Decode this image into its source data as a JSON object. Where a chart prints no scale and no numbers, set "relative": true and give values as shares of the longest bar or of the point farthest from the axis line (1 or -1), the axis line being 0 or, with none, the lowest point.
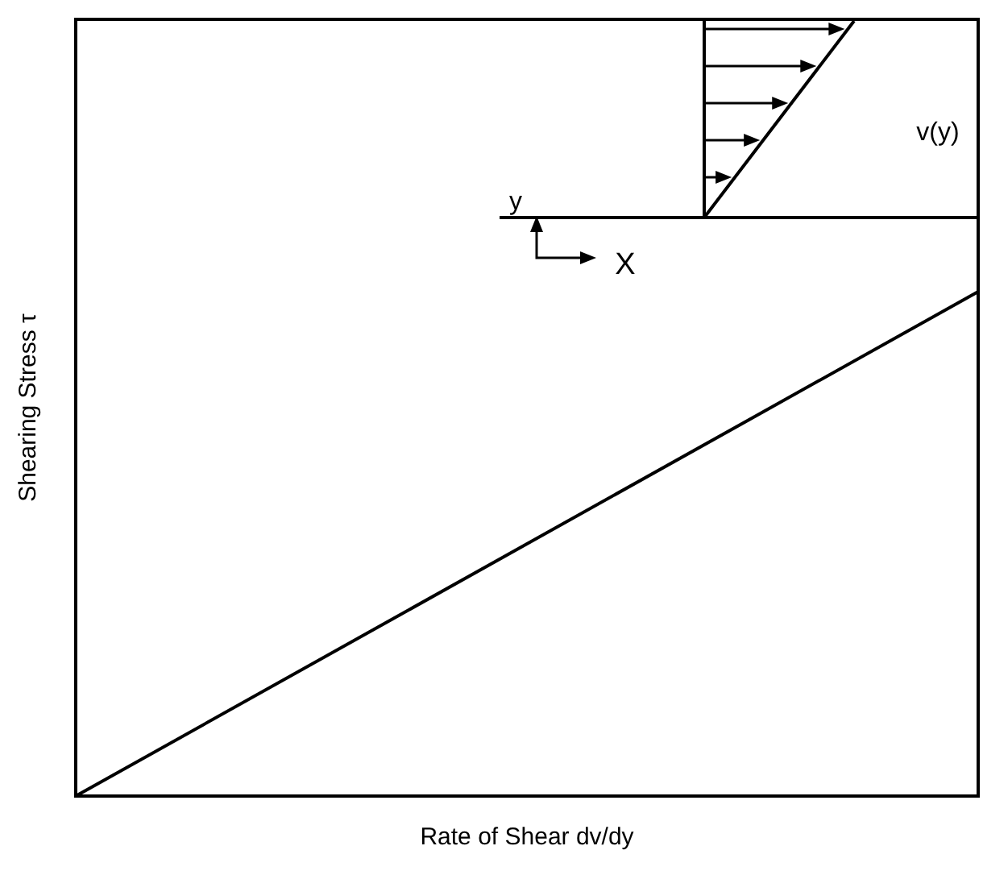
{
  "chart_data": {
    "type": "line",
    "relative": true,
    "xlabel": "Rate of Shear dv/dy",
    "ylabel": "Shearing Stress τ",
    "categories": [
      null,
      null,
      null
    ],
    "series": [
      {
        "color": "#000000",
        "values": [
          0,
          0.5,
          1
        ]
      }
    ],
    "marker": "none",
    "line_style": "solid",
    "grid": false,
    "annotations": [
      "y",
      "X",
      "v(y)"
    ]
  }
}
